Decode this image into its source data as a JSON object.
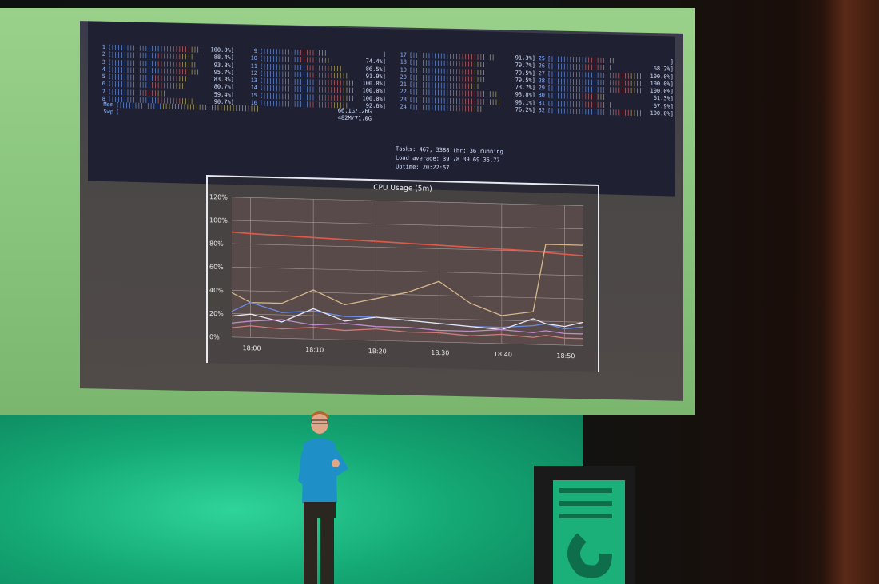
{
  "htop": {
    "cpus": [
      {
        "n": "1",
        "pct": "100.0%"
      },
      {
        "n": "2",
        "pct": "88.4%"
      },
      {
        "n": "3",
        "pct": "93.8%"
      },
      {
        "n": "4",
        "pct": "95.7%"
      },
      {
        "n": "5",
        "pct": "83.3%"
      },
      {
        "n": "6",
        "pct": "80.7%"
      },
      {
        "n": "7",
        "pct": "59.4%"
      },
      {
        "n": "8",
        "pct": "90.7%"
      },
      {
        "n": "9",
        "pct": ""
      },
      {
        "n": "10",
        "pct": "74.4%"
      },
      {
        "n": "11",
        "pct": "86.5%"
      },
      {
        "n": "12",
        "pct": "91.9%"
      },
      {
        "n": "13",
        "pct": "100.0%"
      },
      {
        "n": "14",
        "pct": "100.0%"
      },
      {
        "n": "15",
        "pct": "100.0%"
      },
      {
        "n": "16",
        "pct": "92.6%"
      },
      {
        "n": "17",
        "pct": "91.3%"
      },
      {
        "n": "18",
        "pct": "79.7%"
      },
      {
        "n": "19",
        "pct": "79.5%"
      },
      {
        "n": "20",
        "pct": "79.5%"
      },
      {
        "n": "21",
        "pct": "73.7%"
      },
      {
        "n": "22",
        "pct": "93.8%"
      },
      {
        "n": "23",
        "pct": "98.1%"
      },
      {
        "n": "24",
        "pct": "76.2%"
      },
      {
        "n": "25",
        "pct": ""
      },
      {
        "n": "26",
        "pct": "68.2%"
      },
      {
        "n": "27",
        "pct": "100.0%"
      },
      {
        "n": "28",
        "pct": "100.0%"
      },
      {
        "n": "29",
        "pct": "100.0%"
      },
      {
        "n": "30",
        "pct": "61.3%"
      },
      {
        "n": "31",
        "pct": "67.9%"
      },
      {
        "n": "32",
        "pct": "100.0%"
      }
    ],
    "mem_label": "Mem",
    "swp_label": "Swp",
    "mem_value": "66.1G/126G",
    "swp_value": "482M/71.0G",
    "tasks_line": "Tasks: 467, 3388 thr; 36 running",
    "load_line": "Load average: 39.78 39.69 35.77",
    "uptime_line": "Uptime: 20:22:57",
    "extra_value": "69.3%"
  },
  "chart_data": {
    "type": "line",
    "title": "CPU Usage (5m)",
    "yticks": [
      "120%",
      "100%",
      "80%",
      "60%",
      "40%",
      "20%",
      "0%"
    ],
    "xticks": [
      "18:00",
      "18:10",
      "18:20",
      "18:30",
      "18:40",
      "18:50"
    ],
    "ylim": [
      0,
      120
    ],
    "x": [
      "17:57",
      "18:00",
      "18:05",
      "18:10",
      "18:15",
      "18:20",
      "18:25",
      "18:30",
      "18:35",
      "18:40",
      "18:45",
      "18:47",
      "18:50",
      "18:53"
    ],
    "series": [
      {
        "color": "#e05a4a",
        "values": [
          90,
          89,
          88,
          87,
          86,
          85,
          84,
          83,
          82,
          81,
          80,
          79,
          78,
          77
        ]
      },
      {
        "color": "#d4b48a",
        "values": [
          38,
          30,
          30,
          42,
          30,
          36,
          42,
          52,
          34,
          24,
          28,
          86,
          86,
          86
        ]
      },
      {
        "color": "#6b8ce8",
        "values": [
          22,
          30,
          22,
          24,
          20,
          20,
          18,
          16,
          14,
          14,
          16,
          18,
          14,
          16
        ]
      },
      {
        "color": "#e6e6f0",
        "values": [
          18,
          20,
          14,
          26,
          16,
          20,
          18,
          16,
          14,
          12,
          22,
          18,
          16,
          20
        ]
      },
      {
        "color": "#c08ad0",
        "values": [
          12,
          14,
          16,
          12,
          14,
          12,
          12,
          10,
          10,
          12,
          10,
          12,
          10,
          10
        ]
      },
      {
        "color": "#d07a7a",
        "values": [
          8,
          10,
          8,
          10,
          8,
          10,
          8,
          8,
          6,
          8,
          6,
          8,
          6,
          6
        ]
      }
    ]
  },
  "colors": {
    "backdrop_green": "#14a874",
    "screen_green": "#89c57d",
    "terminal_bg": "#1f2133"
  }
}
